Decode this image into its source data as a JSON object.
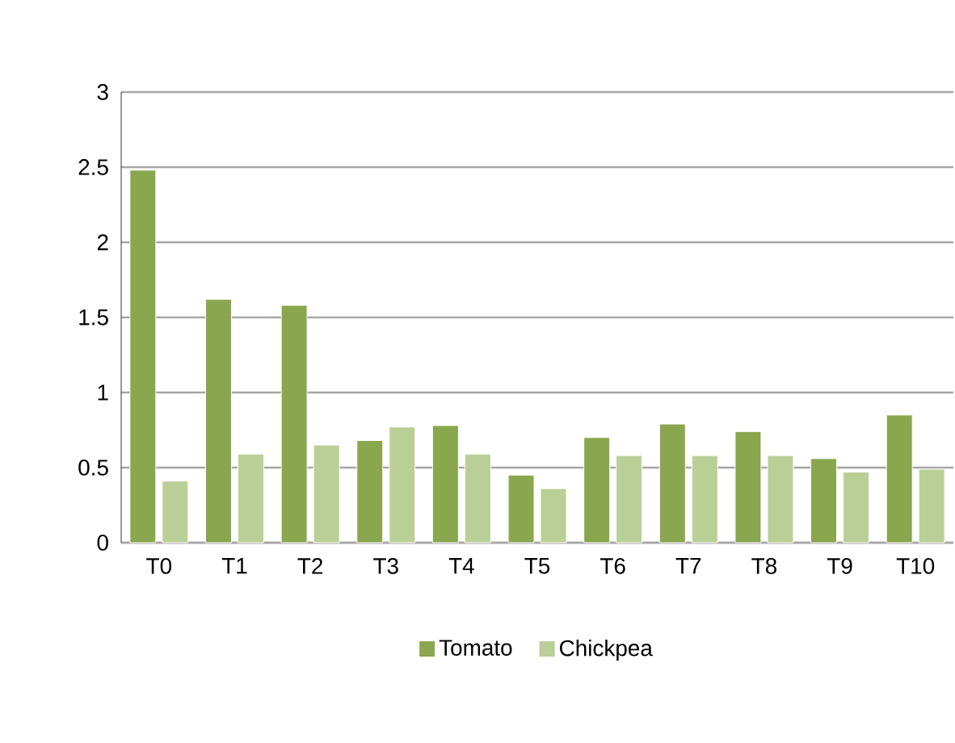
{
  "chart_data": {
    "type": "bar",
    "categories": [
      "T0",
      "T1",
      "T2",
      "T3",
      "T4",
      "T5",
      "T6",
      "T7",
      "T8",
      "T9",
      "T10"
    ],
    "series": [
      {
        "name": "Tomato",
        "color": "#8aa64f",
        "values": [
          2.48,
          1.62,
          1.58,
          0.68,
          0.78,
          0.45,
          0.7,
          0.79,
          0.74,
          0.56,
          0.85
        ]
      },
      {
        "name": "Chickpea",
        "color": "#bacf96",
        "values": [
          0.41,
          0.59,
          0.65,
          0.77,
          0.59,
          0.36,
          0.58,
          0.58,
          0.58,
          0.47,
          0.49
        ]
      }
    ],
    "ylim": [
      0,
      3
    ],
    "yticks": [
      0,
      0.5,
      1,
      1.5,
      2,
      2.5,
      3
    ],
    "grid": "y",
    "legend": "bottom"
  }
}
